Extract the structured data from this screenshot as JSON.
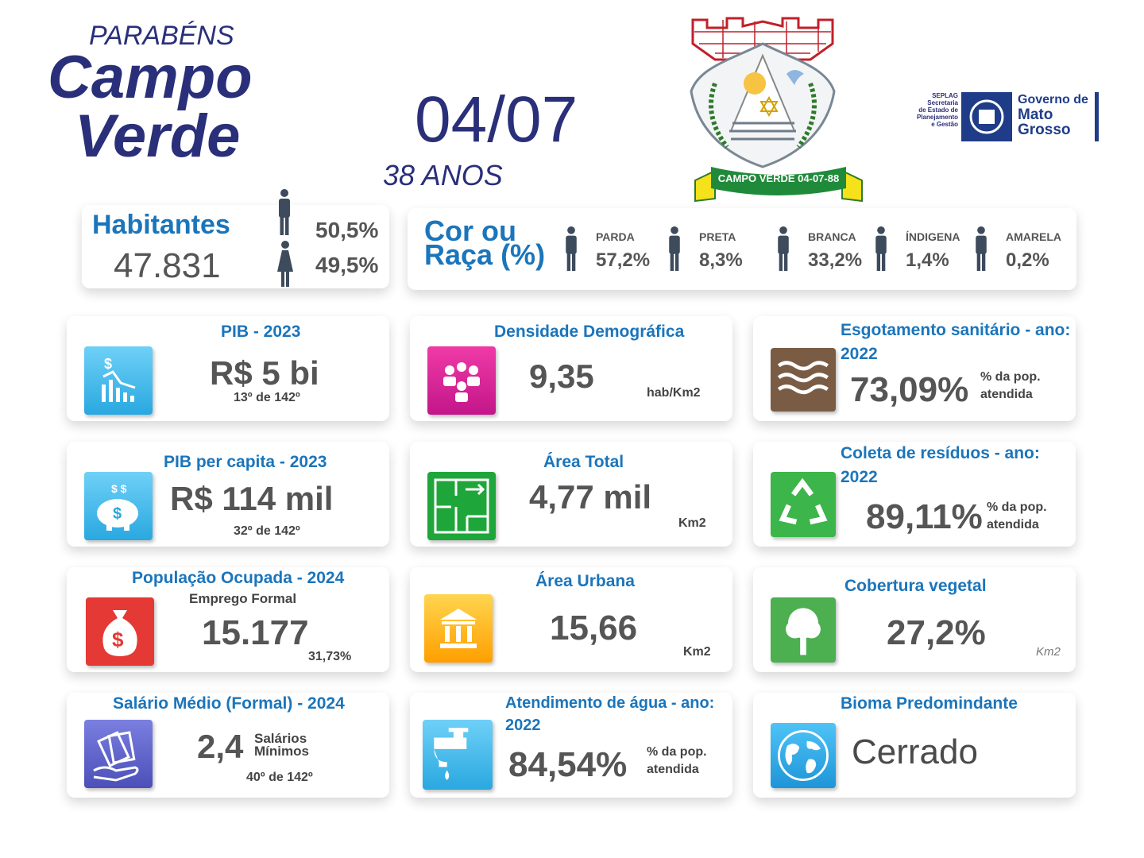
{
  "header": {
    "greeting": "PARABÉNS",
    "city_line1": "Campo",
    "city_line2": "Verde",
    "date": "04/07",
    "years": "38 ANOS"
  },
  "emblem": {
    "banner": "CAMPO VERDE 04-07-88"
  },
  "logo": {
    "seplag": [
      "SEPLAG",
      "Secretaria",
      "de Estado de",
      "Planejamento",
      "e Gestão"
    ],
    "government": [
      "Governo de",
      "Mato",
      "Grosso"
    ]
  },
  "population": {
    "title": "Habitantes",
    "total": "47.831",
    "male": "50,5%",
    "female": "49,5%"
  },
  "race": {
    "title_line1": "Cor ou",
    "title_line2": "Raça (%)",
    "groups": [
      {
        "label": "PARDA",
        "value": "57,2%"
      },
      {
        "label": "PRETA",
        "value": "8,3%"
      },
      {
        "label": "BRANCA",
        "value": "33,2%"
      },
      {
        "label": "ÍNDIGENA",
        "value": "1,4%"
      },
      {
        "label": "AMARELA",
        "value": "0,2%"
      }
    ]
  },
  "cards": [
    {
      "title": "PIB - 2023",
      "value": "R$ 5 bi",
      "rank": "13º de 142º"
    },
    {
      "title": "Densidade Demográfica",
      "value": "9,35",
      "unit": "hab/Km2"
    },
    {
      "title": "Esgotamento sanitário - ano: 2022",
      "value": "73,09%",
      "note": "% da pop. atendida"
    },
    {
      "title": "PIB per capita - 2023",
      "value": "R$ 114 mil",
      "rank": "32º de 142º"
    },
    {
      "title": "Área Total",
      "value": "4,77 mil",
      "unit": "Km2"
    },
    {
      "title": "Coleta de resíduos - ano: 2022",
      "value": "89,11%",
      "note": "% da pop. atendida"
    },
    {
      "title": "População Ocupada - 2024",
      "subtitle": "Emprego Formal",
      "value": "15.177",
      "note": "31,73%"
    },
    {
      "title": "Área Urbana",
      "value": "15,66",
      "unit": "Km2"
    },
    {
      "title": "Cobertura vegetal",
      "value": "27,2%",
      "unit": "Km2"
    },
    {
      "title": "Salário Médio (Formal) - 2024",
      "value": "2,4",
      "unit": "Salários Mínimos",
      "rank": "40º de 142º"
    },
    {
      "title": "Atendimento de água - ano: 2022",
      "value": "84,54%",
      "note": "% da pop. atendida"
    },
    {
      "title": "Bioma Predomindante",
      "value": "Cerrado"
    }
  ]
}
